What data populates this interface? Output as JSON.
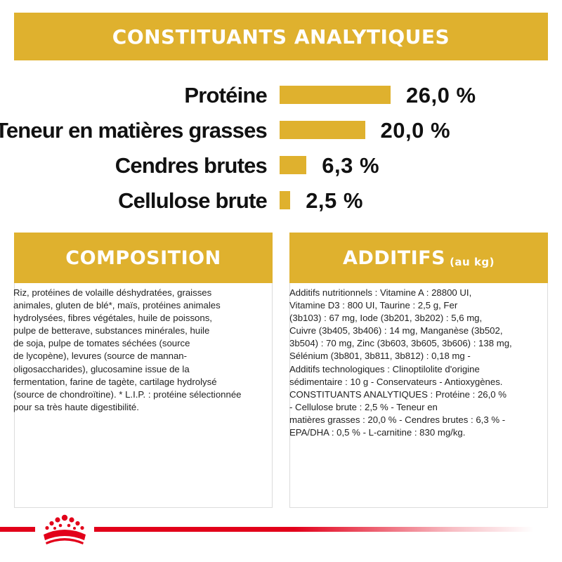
{
  "header": {
    "title": "CONSTITUANTS ANALYTIQUES"
  },
  "analytics": {
    "rows": [
      {
        "label": "Protéine",
        "value": "26,0 %",
        "amount": 26.0
      },
      {
        "label": "Teneur en matières grasses",
        "value": "20,0 %",
        "amount": 20.0
      },
      {
        "label": "Cendres brutes",
        "value": "6,3 %",
        "amount": 6.3
      },
      {
        "label": "Cellulose brute",
        "value": "2,5 %",
        "amount": 2.5
      }
    ]
  },
  "composition": {
    "title": "COMPOSITION",
    "text": "Riz, protéines de volaille déshydratées, graisses\nanimales, gluten de blé*, maïs, protéines animales\nhydrolysées, fibres végétales, huile de poissons,\npulpe de betterave, substances minérales, huile\nde soja, pulpe de tomates séchées (source\nde lycopène), levures (source de mannan-\noligosaccharides), glucosamine issue de la\nfermentation, farine de tagète, cartilage hydrolysé\n(source de chondroïtine). * L.I.P. : protéine sélectionnée\npour sa très haute digestibilité."
  },
  "additifs": {
    "title": "ADDITIFS",
    "title_suffix": "(au kg)",
    "text": "Additifs nutritionnels : Vitamine A : 28800 UI,\nVitamine D3 : 800 UI, Taurine : 2,5 g, Fer\n(3b103) : 67 mg, Iode (3b201, 3b202) : 5,6 mg,\nCuivre (3b405, 3b406) : 14 mg, Manganèse (3b502,\n3b504) : 70 mg, Zinc (3b603, 3b605, 3b606) : 138 mg,\nSélénium (3b801, 3b811, 3b812) : 0,18 mg -\nAdditifs technologiques : Clinoptilolite d'origine\nsédimentaire : 10 g - Conservateurs - Antioxygènes.\nCONSTITUANTS ANALYTIQUES : Protéine : 26,0 %\n- Cellulose brute : 2,5 % - Teneur en\nmatières grasses : 20,0 % - Cendres brutes : 6,3 % -\nEPA/DHA : 0,5 % - L-carnitine : 830 mg/kg."
  },
  "brand": {
    "logo_icon": "crown-icon",
    "accent": "#e2001a",
    "gold": "#dfb12e"
  }
}
